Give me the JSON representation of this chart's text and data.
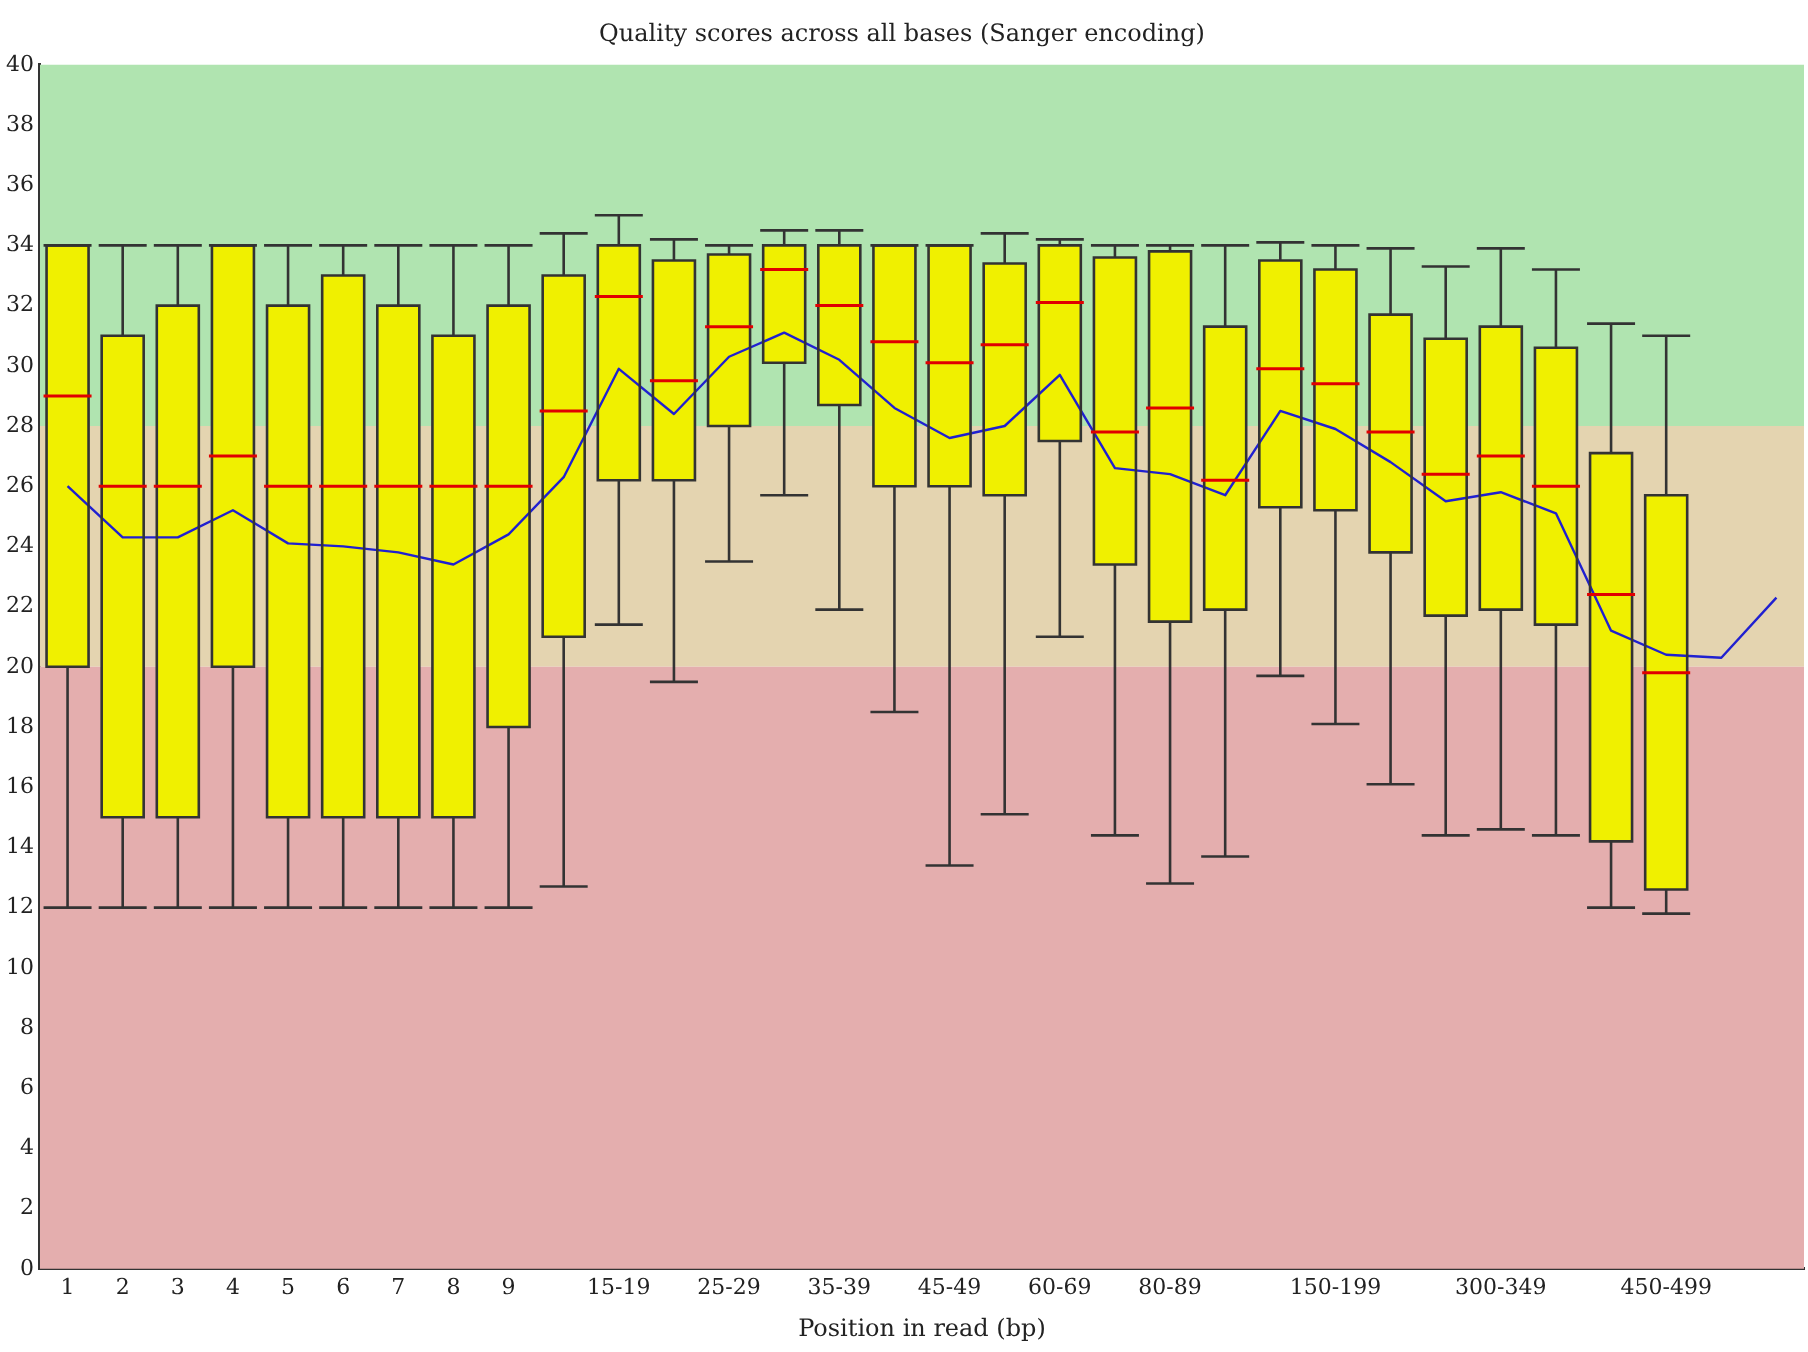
{
  "chart_data": {
    "type": "box",
    "title": "Quality scores across all bases (Sanger encoding)",
    "xlabel": "Position in read (bp)",
    "categories": [
      "1",
      "2",
      "3",
      "4",
      "5",
      "6",
      "7",
      "8",
      "9",
      null,
      "15-19",
      null,
      "25-29",
      null,
      "35-39",
      null,
      "45-49",
      null,
      "60-69",
      null,
      "80-89",
      null,
      null,
      "150-199",
      null,
      null,
      "300-349",
      null,
      null,
      "450-499",
      null,
      null
    ],
    "ylim": [
      0,
      40
    ],
    "yticks": [
      0,
      2,
      4,
      6,
      8,
      10,
      12,
      14,
      16,
      18,
      20,
      22,
      24,
      26,
      28,
      30,
      32,
      34,
      36,
      38,
      40
    ],
    "grid": false,
    "legend": false,
    "bands": [
      {
        "axis": "y",
        "from": 28,
        "to": 40,
        "color": "#b0e4b0"
      },
      {
        "axis": "y",
        "from": 20,
        "to": 28,
        "color": "#e4d4b0"
      },
      {
        "axis": "y",
        "from": 0,
        "to": 20,
        "color": "#e4aeae"
      }
    ],
    "series": [
      {
        "type": "box",
        "color": "#f0f000",
        "boxes": [
          {
            "low": 12,
            "q1": 20,
            "median": 29,
            "q3": 34,
            "high": 34
          },
          {
            "low": 12,
            "q1": 15,
            "median": 26,
            "q3": 31,
            "high": 34
          },
          {
            "low": 12,
            "q1": 15,
            "median": 26,
            "q3": 32,
            "high": 34
          },
          {
            "low": 12,
            "q1": 20,
            "median": 27,
            "q3": 34,
            "high": 34
          },
          {
            "low": 12,
            "q1": 15,
            "median": 26,
            "q3": 32,
            "high": 34
          },
          {
            "low": 12,
            "q1": 15,
            "median": 26,
            "q3": 33,
            "high": 34
          },
          {
            "low": 12,
            "q1": 15,
            "median": 26,
            "q3": 32,
            "high": 34
          },
          {
            "low": 12,
            "q1": 15,
            "median": 26,
            "q3": 31,
            "high": 34
          },
          {
            "low": 12,
            "q1": 18,
            "median": 26,
            "q3": 32,
            "high": 34
          },
          {
            "low": 12.7,
            "q1": 21,
            "median": 28.5,
            "q3": 33,
            "high": 34.4
          },
          {
            "low": 21.4,
            "q1": 26.2,
            "median": 32.3,
            "q3": 34,
            "high": 35
          },
          {
            "low": 19.5,
            "q1": 26.2,
            "median": 29.5,
            "q3": 33.5,
            "high": 34.2
          },
          {
            "low": 23.5,
            "q1": 28,
            "median": 31.3,
            "q3": 33.7,
            "high": 34
          },
          {
            "low": 25.7,
            "q1": 30.1,
            "median": 33.2,
            "q3": 34,
            "high": 34.5
          },
          {
            "low": 21.9,
            "q1": 28.7,
            "median": 32,
            "q3": 34,
            "high": 34.5
          },
          {
            "low": 18.5,
            "q1": 26,
            "median": 30.8,
            "q3": 34,
            "high": 34
          },
          {
            "low": 13.4,
            "q1": 26,
            "median": 30.1,
            "q3": 34,
            "high": 34
          },
          {
            "low": 15.1,
            "q1": 25.7,
            "median": 30.7,
            "q3": 33.4,
            "high": 34.4
          },
          {
            "low": 21,
            "q1": 27.5,
            "median": 32.1,
            "q3": 34,
            "high": 34.2
          },
          {
            "low": 14.4,
            "q1": 23.4,
            "median": 27.8,
            "q3": 33.6,
            "high": 34
          },
          {
            "low": 12.8,
            "q1": 21.5,
            "median": 28.6,
            "q3": 33.8,
            "high": 34
          },
          {
            "low": 13.7,
            "q1": 21.9,
            "median": 26.2,
            "q3": 31.3,
            "high": 34
          },
          {
            "low": 19.7,
            "q1": 25.3,
            "median": 29.9,
            "q3": 33.5,
            "high": 34.1
          },
          {
            "low": 18.1,
            "q1": 25.2,
            "median": 29.4,
            "q3": 33.2,
            "high": 34
          },
          {
            "low": 16.1,
            "q1": 23.8,
            "median": 27.8,
            "q3": 31.7,
            "high": 33.9
          },
          {
            "low": 14.4,
            "q1": 21.7,
            "median": 26.4,
            "q3": 30.9,
            "high": 33.3
          },
          {
            "low": 14.6,
            "q1": 21.9,
            "median": 27,
            "q3": 31.3,
            "high": 33.9
          },
          {
            "low": 14.4,
            "q1": 21.4,
            "median": 26,
            "q3": 30.6,
            "high": 33.2
          },
          {
            "low": 12,
            "q1": 14.2,
            "median": 22.4,
            "q3": 27.1,
            "high": 31.4
          },
          {
            "low": 11.8,
            "q1": 12.6,
            "median": 19.8,
            "q3": 25.7,
            "high": 31
          },
          null,
          null
        ]
      },
      {
        "type": "line",
        "color": "#2020d0",
        "marker": "none",
        "values": [
          26,
          24.3,
          24.3,
          25.2,
          24.1,
          24,
          23.8,
          23.4,
          24.4,
          26.3,
          29.9,
          28.4,
          30.3,
          31.1,
          30.2,
          28.6,
          27.6,
          28,
          29.7,
          26.6,
          26.4,
          25.7,
          28.5,
          27.9,
          26.8,
          25.5,
          25.8,
          25.1,
          21.2,
          20.4,
          20.3,
          22.3
        ]
      }
    ]
  }
}
